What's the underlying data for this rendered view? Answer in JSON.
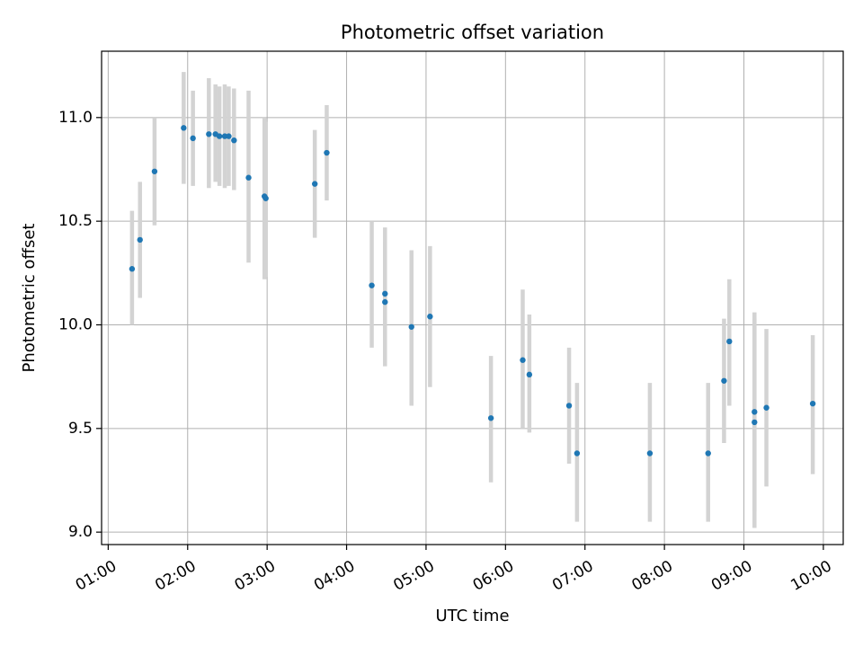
{
  "chart_data": {
    "type": "scatter",
    "title": "Photometric offset variation",
    "xlabel": "UTC time",
    "ylabel": "Photometric offset",
    "x_unit": "hours UTC",
    "xlim": [
      "00:55",
      "10:15"
    ],
    "ylim": [
      8.94,
      11.32
    ],
    "x_ticks": [
      "01:00",
      "02:00",
      "03:00",
      "04:00",
      "05:00",
      "06:00",
      "07:00",
      "08:00",
      "09:00",
      "10:00"
    ],
    "y_ticks": [
      9.0,
      9.5,
      10.0,
      10.5,
      11.0
    ],
    "y_tick_labels": [
      "9.0",
      "9.5",
      "10.0",
      "10.5",
      "11.0"
    ],
    "grid": true,
    "colors": {
      "point": "#1f77b4",
      "errorbar": "#d3d3d3",
      "grid": "#b0b0b0"
    },
    "points": [
      {
        "x": "01:18",
        "y": 10.27,
        "low": 10.0,
        "high": 10.55
      },
      {
        "x": "01:24",
        "y": 10.41,
        "low": 10.13,
        "high": 10.69
      },
      {
        "x": "01:35",
        "y": 10.74,
        "low": 10.48,
        "high": 11.0
      },
      {
        "x": "01:57",
        "y": 10.95,
        "low": 10.68,
        "high": 11.22
      },
      {
        "x": "02:04",
        "y": 10.9,
        "low": 10.67,
        "high": 11.13
      },
      {
        "x": "02:16",
        "y": 10.92,
        "low": 10.66,
        "high": 11.19
      },
      {
        "x": "02:21",
        "y": 10.92,
        "low": 10.69,
        "high": 11.16
      },
      {
        "x": "02:24",
        "y": 10.91,
        "low": 10.67,
        "high": 11.15
      },
      {
        "x": "02:28",
        "y": 10.91,
        "low": 10.66,
        "high": 11.16
      },
      {
        "x": "02:31",
        "y": 10.91,
        "low": 10.67,
        "high": 11.15
      },
      {
        "x": "02:35",
        "y": 10.89,
        "low": 10.65,
        "high": 11.14
      },
      {
        "x": "02:46",
        "y": 10.71,
        "low": 10.3,
        "high": 11.13
      },
      {
        "x": "02:58",
        "y": 10.62,
        "low": 10.22,
        "high": 11.0
      },
      {
        "x": "02:59",
        "y": 10.61,
        "low": 10.23,
        "high": 10.98
      },
      {
        "x": "03:36",
        "y": 10.68,
        "low": 10.42,
        "high": 10.94
      },
      {
        "x": "03:45",
        "y": 10.83,
        "low": 10.6,
        "high": 11.06
      },
      {
        "x": "04:19",
        "y": 10.19,
        "low": 9.89,
        "high": 10.5
      },
      {
        "x": "04:29",
        "y": 10.15,
        "low": 9.8,
        "high": 10.47
      },
      {
        "x": "04:29",
        "y": 10.11,
        "low": 9.83,
        "high": 10.4
      },
      {
        "x": "04:49",
        "y": 9.99,
        "low": 9.61,
        "high": 10.36
      },
      {
        "x": "05:03",
        "y": 10.04,
        "low": 9.7,
        "high": 10.38
      },
      {
        "x": "05:49",
        "y": 9.55,
        "low": 9.24,
        "high": 9.85
      },
      {
        "x": "06:13",
        "y": 9.83,
        "low": 9.5,
        "high": 10.17
      },
      {
        "x": "06:18",
        "y": 9.76,
        "low": 9.48,
        "high": 10.05
      },
      {
        "x": "06:48",
        "y": 9.61,
        "low": 9.33,
        "high": 9.89
      },
      {
        "x": "06:54",
        "y": 9.38,
        "low": 9.05,
        "high": 9.72
      },
      {
        "x": "07:49",
        "y": 9.38,
        "low": 9.05,
        "high": 9.72
      },
      {
        "x": "08:33",
        "y": 9.38,
        "low": 9.05,
        "high": 9.72
      },
      {
        "x": "08:45",
        "y": 9.73,
        "low": 9.43,
        "high": 10.03
      },
      {
        "x": "08:49",
        "y": 9.92,
        "low": 9.61,
        "high": 10.22
      },
      {
        "x": "09:08",
        "y": 9.58,
        "low": 9.1,
        "high": 10.06
      },
      {
        "x": "09:08",
        "y": 9.53,
        "low": 9.02,
        "high": 10.03
      },
      {
        "x": "09:17",
        "y": 9.6,
        "low": 9.22,
        "high": 9.98
      },
      {
        "x": "09:52",
        "y": 9.62,
        "low": 9.28,
        "high": 9.95
      }
    ]
  }
}
